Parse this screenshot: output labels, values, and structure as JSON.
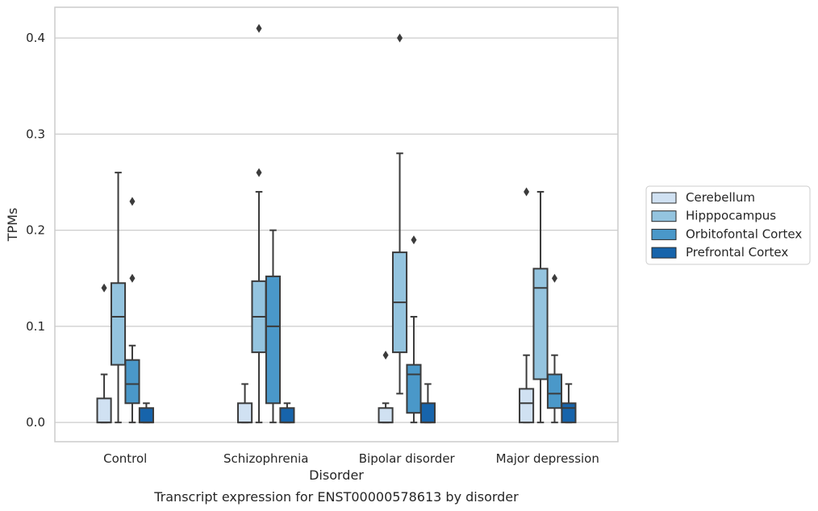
{
  "chart_data": {
    "type": "box",
    "title": "",
    "caption": "Transcript expression for ENST00000578613 by disorder",
    "xlabel": "Disorder",
    "ylabel": "TPMs",
    "ylim": [
      -0.02,
      0.432
    ],
    "yticks": [
      "0.0",
      "0.1",
      "0.2",
      "0.3",
      "0.4"
    ],
    "ytick_values": [
      0.0,
      0.1,
      0.2,
      0.3,
      0.4
    ],
    "grid": "horizontal",
    "legend_position": "right",
    "categories": [
      "Control",
      "Schizophrenia",
      "Bipolar disorder",
      "Major depression"
    ],
    "series": [
      {
        "name": "Cerebellum",
        "color": "#d0e1f2",
        "boxes": [
          {
            "whislo": 0.0,
            "q1": 0.0,
            "med": 0.0,
            "q3": 0.025,
            "whishi": 0.05,
            "fliers": [
              0.14
            ]
          },
          {
            "whislo": 0.0,
            "q1": 0.0,
            "med": 0.0,
            "q3": 0.02,
            "whishi": 0.04,
            "fliers": []
          },
          {
            "whislo": 0.0,
            "q1": 0.0,
            "med": 0.0,
            "q3": 0.015,
            "whishi": 0.02,
            "fliers": [
              0.07
            ]
          },
          {
            "whislo": 0.0,
            "q1": 0.0,
            "med": 0.02,
            "q3": 0.035,
            "whishi": 0.07,
            "fliers": [
              0.24
            ]
          }
        ]
      },
      {
        "name": "Hipppocampus",
        "color": "#94c4df",
        "boxes": [
          {
            "whislo": 0.0,
            "q1": 0.06,
            "med": 0.11,
            "q3": 0.145,
            "whishi": 0.26,
            "fliers": []
          },
          {
            "whislo": 0.0,
            "q1": 0.073,
            "med": 0.11,
            "q3": 0.147,
            "whishi": 0.24,
            "fliers": [
              0.26,
              0.41
            ]
          },
          {
            "whislo": 0.03,
            "q1": 0.073,
            "med": 0.125,
            "q3": 0.177,
            "whishi": 0.28,
            "fliers": [
              0.4
            ]
          },
          {
            "whislo": 0.0,
            "q1": 0.045,
            "med": 0.14,
            "q3": 0.16,
            "whishi": 0.24,
            "fliers": []
          }
        ]
      },
      {
        "name": "Orbitofontal Cortex",
        "color": "#4a98c9",
        "boxes": [
          {
            "whislo": 0.0,
            "q1": 0.02,
            "med": 0.04,
            "q3": 0.065,
            "whishi": 0.08,
            "fliers": [
              0.15,
              0.23
            ]
          },
          {
            "whislo": 0.0,
            "q1": 0.02,
            "med": 0.1,
            "q3": 0.152,
            "whishi": 0.2,
            "fliers": []
          },
          {
            "whislo": 0.0,
            "q1": 0.01,
            "med": 0.05,
            "q3": 0.06,
            "whishi": 0.11,
            "fliers": [
              0.19
            ]
          },
          {
            "whislo": 0.0,
            "q1": 0.015,
            "med": 0.03,
            "q3": 0.05,
            "whishi": 0.07,
            "fliers": [
              0.15
            ]
          }
        ]
      },
      {
        "name": "Prefrontal Cortex",
        "color": "#1764ab",
        "boxes": [
          {
            "whislo": 0.0,
            "q1": 0.0,
            "med": 0.0,
            "q3": 0.015,
            "whishi": 0.02,
            "fliers": []
          },
          {
            "whislo": 0.0,
            "q1": 0.0,
            "med": 0.0,
            "q3": 0.015,
            "whishi": 0.02,
            "fliers": []
          },
          {
            "whislo": 0.0,
            "q1": 0.0,
            "med": 0.0,
            "q3": 0.02,
            "whishi": 0.04,
            "fliers": []
          },
          {
            "whislo": 0.0,
            "q1": 0.0,
            "med": 0.015,
            "q3": 0.02,
            "whishi": 0.04,
            "fliers": []
          }
        ]
      }
    ]
  }
}
